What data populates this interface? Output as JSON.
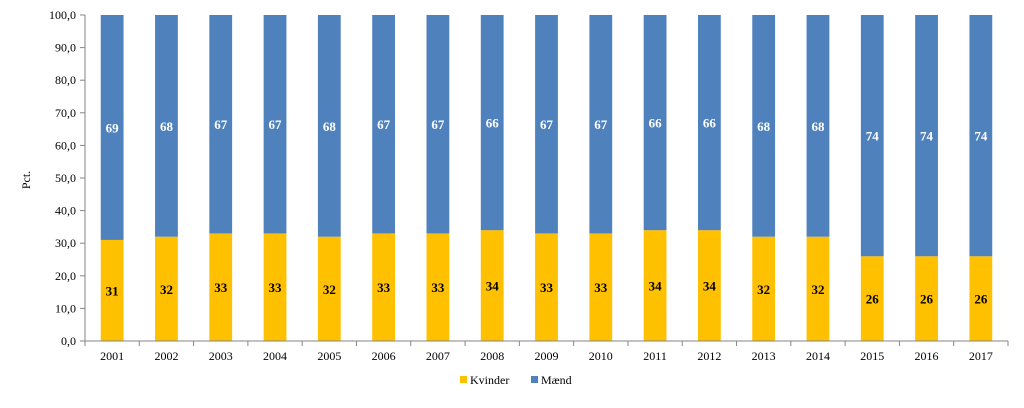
{
  "chart_data": {
    "type": "bar",
    "stacked": true,
    "categories": [
      "2001",
      "2002",
      "2003",
      "2004",
      "2005",
      "2006",
      "2007",
      "2008",
      "2009",
      "2010",
      "2011",
      "2012",
      "2013",
      "2014",
      "2015",
      "2016",
      "2017"
    ],
    "series": [
      {
        "name": "Kvinder",
        "color": "#FFC000",
        "label_color": "#000000",
        "values": [
          31,
          32,
          33,
          33,
          32,
          33,
          33,
          34,
          33,
          33,
          34,
          34,
          32,
          32,
          26,
          26,
          26
        ]
      },
      {
        "name": "Mænd",
        "color": "#4F81BD",
        "label_color": "#FFFFFF",
        "values": [
          69,
          68,
          67,
          67,
          68,
          67,
          67,
          66,
          67,
          67,
          66,
          66,
          68,
          68,
          74,
          74,
          74
        ]
      }
    ],
    "ylabel": "Pct.",
    "ylim": [
      0,
      100
    ],
    "yticks": [
      "0,0",
      "10,0",
      "20,0",
      "30,0",
      "40,0",
      "50,0",
      "60,0",
      "70,0",
      "80,0",
      "90,0",
      "100,0"
    ],
    "legend_position": "bottom",
    "grid": false
  }
}
